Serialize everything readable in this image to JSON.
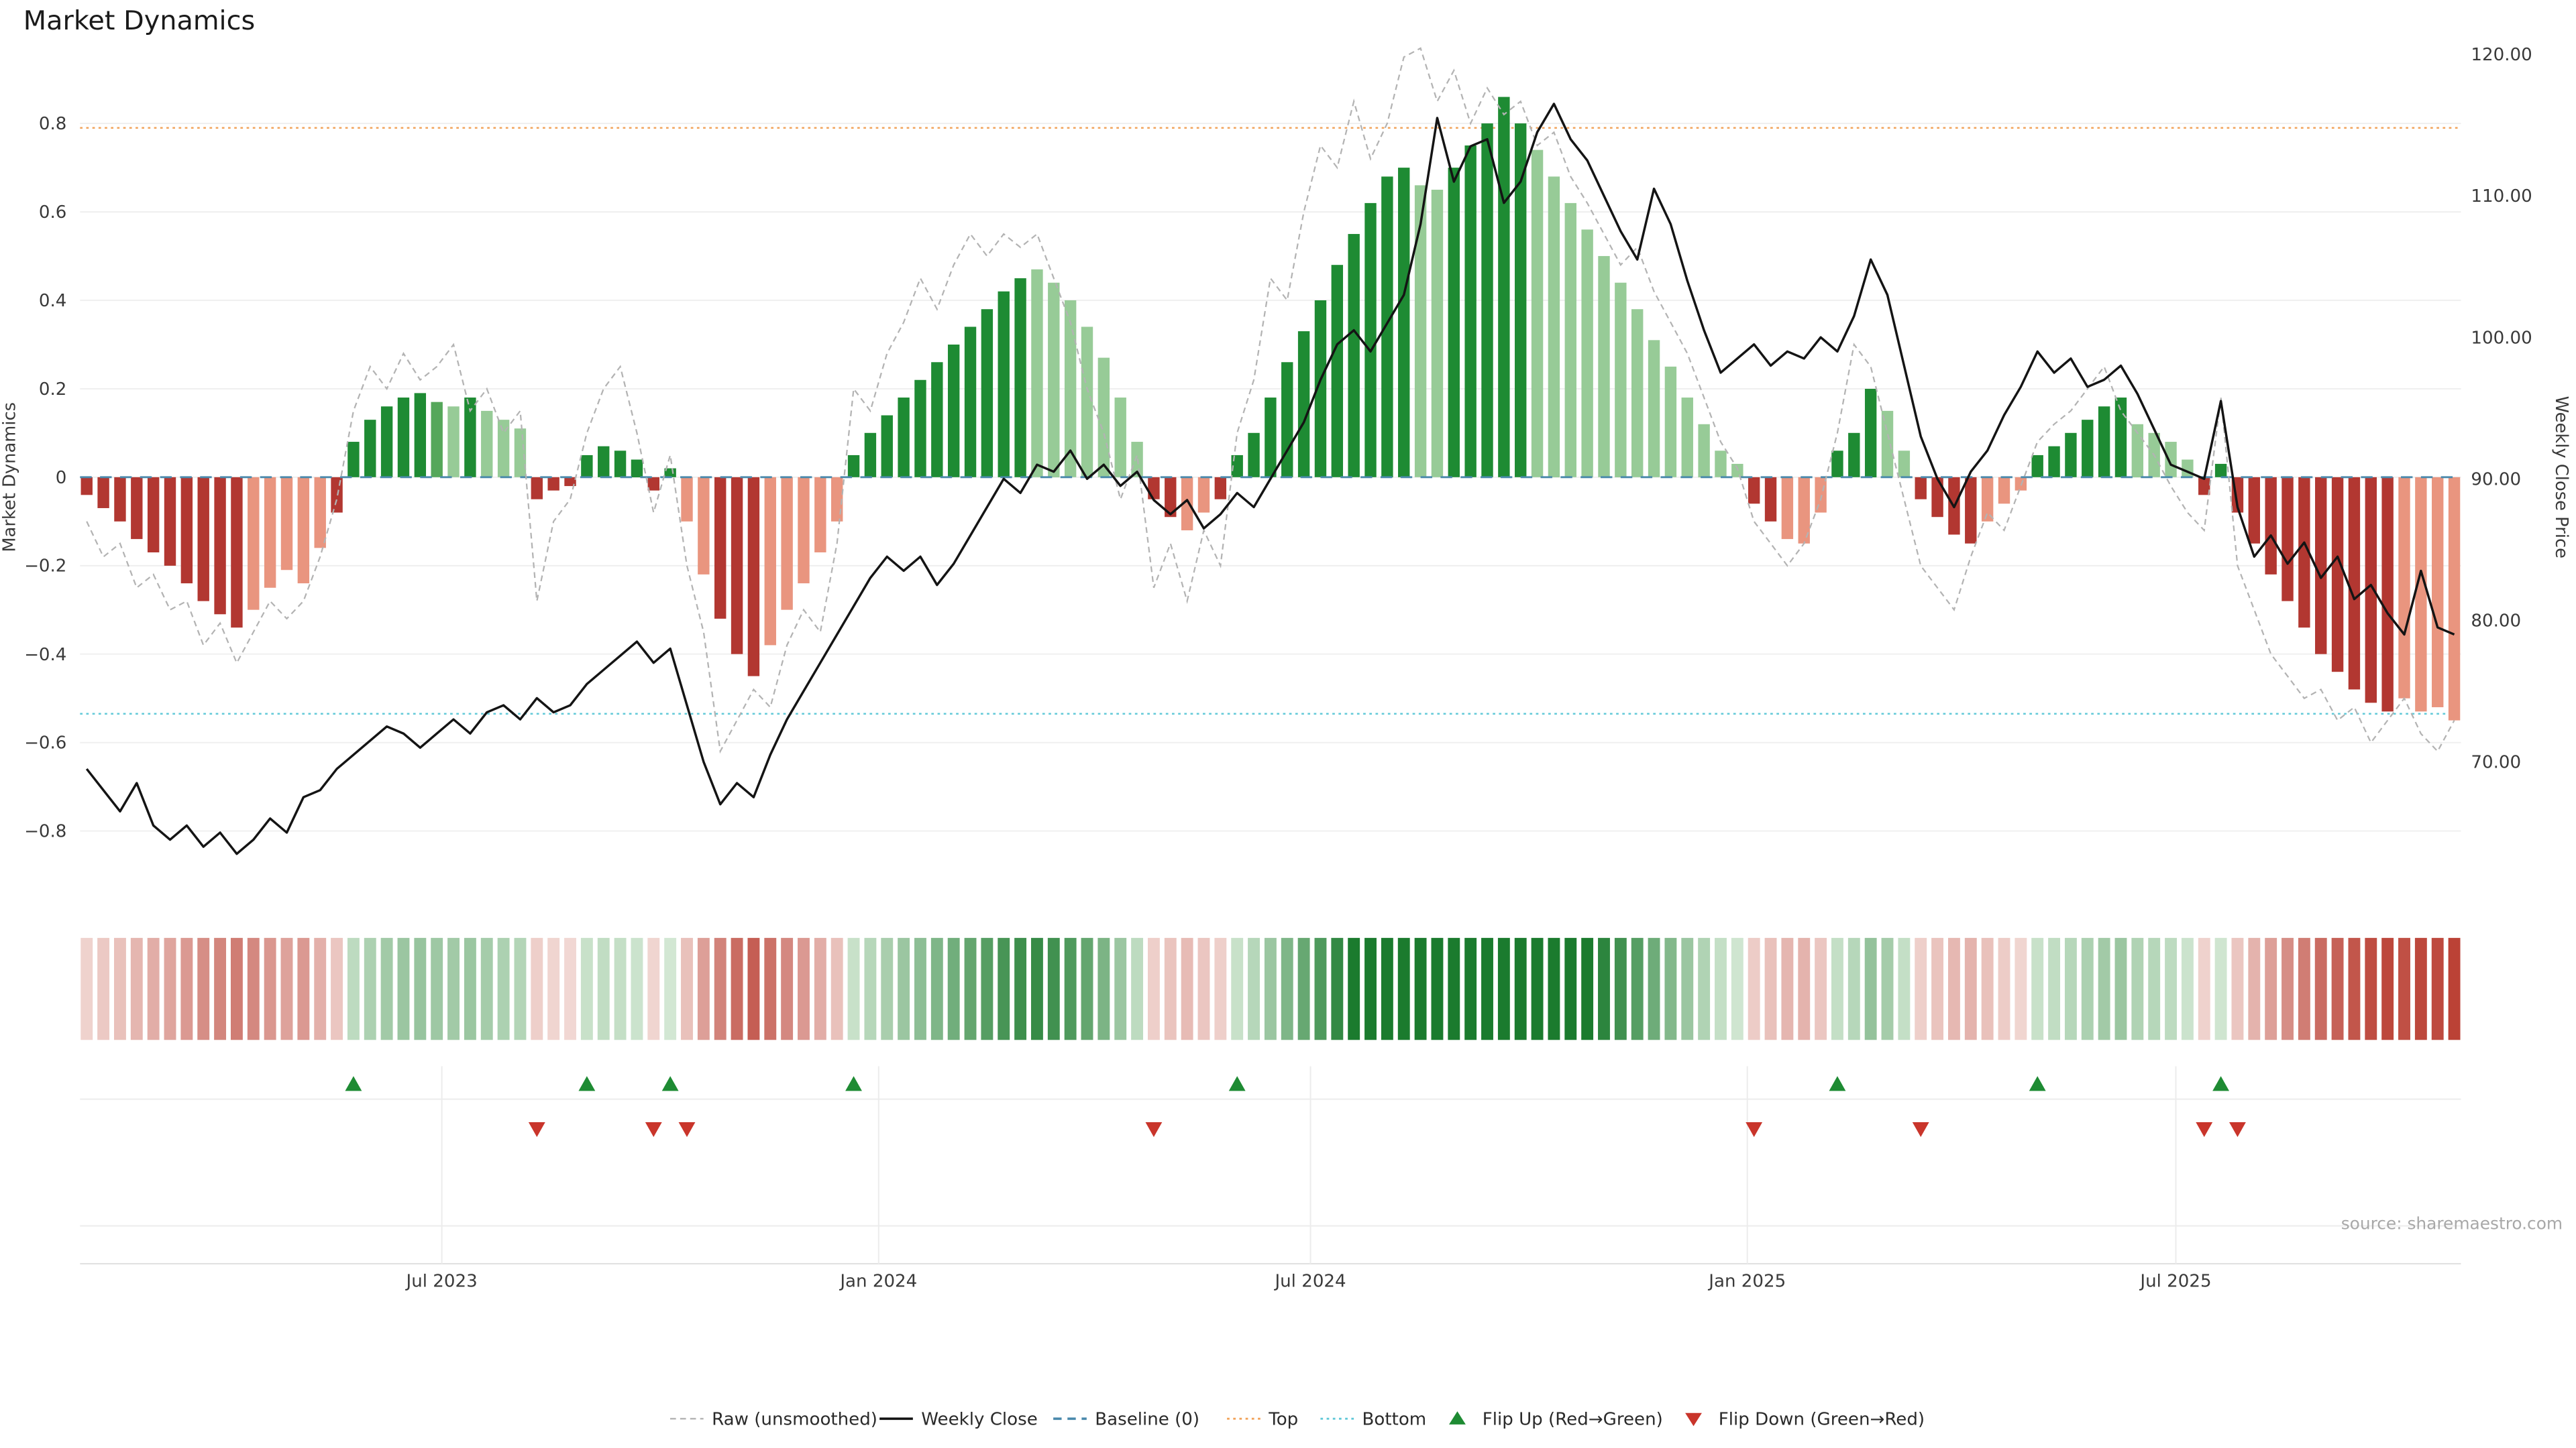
{
  "page": {
    "title": "Market Dynamics",
    "source": "source: sharemaestro.com"
  },
  "legend": {
    "items": [
      {
        "label": "Raw (unsmoothed)",
        "icon": "dashed-gray-line"
      },
      {
        "label": "Weekly Close",
        "icon": "solid-black-line"
      },
      {
        "label": "Baseline (0)",
        "icon": "dashed-blue-line"
      },
      {
        "label": "Top",
        "icon": "dotted-orange-line"
      },
      {
        "label": "Bottom",
        "icon": "dotted-cyan-line"
      },
      {
        "label": "Flip Up (Red→Green)",
        "icon": "up-triangle"
      },
      {
        "label": "Flip Down (Green→Red)",
        "icon": "down-triangle"
      }
    ]
  },
  "chart_data": {
    "type": "combo",
    "title": "Market Dynamics",
    "left_axis": {
      "label": "Market Dynamics",
      "range": [
        -0.95,
        0.97
      ],
      "ticks": [
        {
          "v": 0.8,
          "t": "0.8"
        },
        {
          "v": 0.6,
          "t": "0.6"
        },
        {
          "v": 0.4,
          "t": "0.4"
        },
        {
          "v": 0.2,
          "t": "0.2"
        },
        {
          "v": 0,
          "t": "0"
        },
        {
          "v": -0.2,
          "t": "−0.2"
        },
        {
          "v": -0.4,
          "t": "−0.4"
        },
        {
          "v": -0.6,
          "t": "−0.6"
        },
        {
          "v": -0.8,
          "t": "−0.8"
        }
      ]
    },
    "right_axis": {
      "label": "Weekly Close Price",
      "ticks": [
        {
          "v": 120,
          "t": "120.00"
        },
        {
          "v": 110,
          "t": "110.00"
        },
        {
          "v": 100,
          "t": "100.00"
        },
        {
          "v": 90,
          "t": "90.00"
        },
        {
          "v": 80,
          "t": "80.00"
        },
        {
          "v": 70,
          "t": "70.00"
        }
      ]
    },
    "x_axis": {
      "ticks": [
        {
          "i": 21.3,
          "t": "Jul 2023"
        },
        {
          "i": 47.5,
          "t": "Jan 2024"
        },
        {
          "i": 73.4,
          "t": "Jul 2024"
        },
        {
          "i": 99.6,
          "t": "Jan 2025"
        },
        {
          "i": 125.3,
          "t": "Jul 2025"
        }
      ]
    },
    "baseline": 0,
    "top": 0.79,
    "bottom": -0.535,
    "palette": {
      "dr": "#b23731",
      "lr": "#e9957f",
      "dg": "#1e8b33",
      "mg": "#55a75a",
      "lg": "#97cb97",
      "raw": "#b3b3b3",
      "price": "#141414",
      "baseline": "#4a89ac",
      "top": "#f2a45c",
      "bottom": "#62c9d8",
      "grid": "#efefef",
      "flip_up": "#1e8b33",
      "flip_down": "#c9352b"
    },
    "bars": {
      "name": "Market Dynamics (smoothed)",
      "values": [
        -0.04,
        -0.07,
        -0.1,
        -0.14,
        -0.17,
        -0.2,
        -0.24,
        -0.28,
        -0.31,
        -0.34,
        -0.3,
        -0.25,
        -0.21,
        -0.24,
        -0.16,
        -0.08,
        0.08,
        0.13,
        0.16,
        0.18,
        0.19,
        0.17,
        0.16,
        0.18,
        0.15,
        0.13,
        0.11,
        -0.05,
        -0.03,
        -0.02,
        0.05,
        0.07,
        0.06,
        0.04,
        -0.03,
        0.02,
        -0.1,
        -0.22,
        -0.32,
        -0.4,
        -0.45,
        -0.38,
        -0.3,
        -0.24,
        -0.17,
        -0.1,
        0.05,
        0.1,
        0.14,
        0.18,
        0.22,
        0.26,
        0.3,
        0.34,
        0.38,
        0.42,
        0.45,
        0.47,
        0.44,
        0.4,
        0.34,
        0.27,
        0.18,
        0.08,
        -0.05,
        -0.09,
        -0.12,
        -0.08,
        -0.05,
        0.05,
        0.1,
        0.18,
        0.26,
        0.33,
        0.4,
        0.48,
        0.55,
        0.62,
        0.68,
        0.7,
        0.66,
        0.65,
        0.7,
        0.75,
        0.8,
        0.86,
        0.8,
        0.74,
        0.68,
        0.62,
        0.56,
        0.5,
        0.44,
        0.38,
        0.31,
        0.25,
        0.18,
        0.12,
        0.06,
        0.03,
        -0.06,
        -0.1,
        -0.14,
        -0.15,
        -0.08,
        0.06,
        0.1,
        0.2,
        0.15,
        0.06,
        -0.05,
        -0.09,
        -0.13,
        -0.15,
        -0.1,
        -0.06,
        -0.03,
        0.05,
        0.07,
        0.1,
        0.13,
        0.16,
        0.18,
        0.12,
        0.1,
        0.08,
        0.04,
        -0.04,
        0.03,
        -0.08,
        -0.15,
        -0.22,
        -0.28,
        -0.34,
        -0.4,
        -0.44,
        -0.48,
        -0.51,
        -0.53,
        -0.5,
        -0.53,
        -0.52,
        -0.55
      ],
      "shades": [
        "dr",
        "dr",
        "dr",
        "dr",
        "dr",
        "dr",
        "dr",
        "dr",
        "dr",
        "dr",
        "lr",
        "lr",
        "lr",
        "lr",
        "lr",
        "dr",
        "dg",
        "dg",
        "dg",
        "dg",
        "dg",
        "mg",
        "lg",
        "dg",
        "lg",
        "lg",
        "lg",
        "dr",
        "dr",
        "dr",
        "dg",
        "dg",
        "dg",
        "dg",
        "dr",
        "dg",
        "lr",
        "lr",
        "dr",
        "dr",
        "dr",
        "lr",
        "lr",
        "lr",
        "lr",
        "lr",
        "dg",
        "dg",
        "dg",
        "dg",
        "dg",
        "dg",
        "dg",
        "dg",
        "dg",
        "dg",
        "dg",
        "lg",
        "lg",
        "lg",
        "lg",
        "lg",
        "lg",
        "lg",
        "dr",
        "dr",
        "lr",
        "lr",
        "dr",
        "dg",
        "dg",
        "dg",
        "dg",
        "dg",
        "dg",
        "dg",
        "dg",
        "dg",
        "dg",
        "dg",
        "lg",
        "lg",
        "dg",
        "dg",
        "dg",
        "dg",
        "dg",
        "lg",
        "lg",
        "lg",
        "lg",
        "lg",
        "lg",
        "lg",
        "lg",
        "lg",
        "lg",
        "lg",
        "lg",
        "lg",
        "dr",
        "dr",
        "lr",
        "lr",
        "lr",
        "dg",
        "dg",
        "dg",
        "lg",
        "lg",
        "dr",
        "dr",
        "dr",
        "dr",
        "lr",
        "lr",
        "lr",
        "dg",
        "dg",
        "dg",
        "dg",
        "dg",
        "dg",
        "lg",
        "lg",
        "lg",
        "lg",
        "dr",
        "dg",
        "dr",
        "dr",
        "dr",
        "dr",
        "dr",
        "dr",
        "dr",
        "dr",
        "dr",
        "dr",
        "lr",
        "lr",
        "lr",
        "lr"
      ]
    },
    "raw": {
      "name": "Raw (unsmoothed)",
      "values": [
        -0.1,
        -0.18,
        -0.15,
        -0.25,
        -0.22,
        -0.3,
        -0.28,
        -0.38,
        -0.33,
        -0.42,
        -0.35,
        -0.28,
        -0.32,
        -0.28,
        -0.18,
        -0.05,
        0.15,
        0.25,
        0.2,
        0.28,
        0.22,
        0.25,
        0.3,
        0.15,
        0.2,
        0.1,
        0.15,
        -0.28,
        -0.1,
        -0.05,
        0.1,
        0.2,
        0.25,
        0.1,
        -0.08,
        0.05,
        -0.2,
        -0.35,
        -0.62,
        -0.55,
        -0.48,
        -0.52,
        -0.38,
        -0.3,
        -0.35,
        -0.15,
        0.2,
        0.15,
        0.28,
        0.35,
        0.45,
        0.38,
        0.48,
        0.55,
        0.5,
        0.55,
        0.52,
        0.55,
        0.45,
        0.35,
        0.2,
        0.1,
        -0.05,
        0.05,
        -0.25,
        -0.15,
        -0.28,
        -0.12,
        -0.2,
        0.1,
        0.22,
        0.45,
        0.4,
        0.6,
        0.75,
        0.7,
        0.85,
        0.72,
        0.8,
        0.95,
        0.97,
        0.85,
        0.92,
        0.8,
        0.88,
        0.82,
        0.85,
        0.75,
        0.78,
        0.68,
        0.62,
        0.55,
        0.48,
        0.52,
        0.42,
        0.35,
        0.28,
        0.18,
        0.08,
        0.02,
        -0.1,
        -0.15,
        -0.2,
        -0.15,
        -0.05,
        0.1,
        0.3,
        0.25,
        0.1,
        -0.05,
        -0.2,
        -0.25,
        -0.3,
        -0.18,
        -0.08,
        -0.12,
        -0.02,
        0.08,
        0.12,
        0.15,
        0.2,
        0.25,
        0.15,
        0.1,
        0.05,
        -0.02,
        -0.08,
        -0.12,
        0.18,
        -0.2,
        -0.3,
        -0.4,
        -0.45,
        -0.5,
        -0.48,
        -0.55,
        -0.52,
        -0.6,
        -0.55,
        -0.5,
        -0.58,
        -0.62,
        -0.55
      ]
    },
    "price": {
      "name": "Weekly Close",
      "axis": "right",
      "values": [
        69.5,
        68,
        66.5,
        68.5,
        65.5,
        64.5,
        65.5,
        64,
        65,
        63.5,
        64.5,
        66,
        65,
        67.5,
        68,
        69.5,
        70.5,
        71.5,
        72.5,
        72,
        71,
        72,
        73,
        72,
        73.5,
        74,
        73,
        74.5,
        73.5,
        74,
        75.5,
        76.5,
        77.5,
        78.5,
        77,
        78,
        74,
        70,
        67,
        68.5,
        67.5,
        70.5,
        73,
        75,
        77,
        79,
        81,
        83,
        84.5,
        83.5,
        84.5,
        82.5,
        84,
        86,
        88,
        90,
        89,
        91,
        90.5,
        92,
        90,
        91,
        89.5,
        90.5,
        88.5,
        87.5,
        88.5,
        86.5,
        87.5,
        89,
        88,
        90,
        92,
        94,
        97,
        99.5,
        100.5,
        99,
        101,
        103,
        108,
        115.5,
        111,
        113.5,
        114,
        109.5,
        111,
        114.5,
        116.5,
        114,
        112.5,
        110,
        107.5,
        105.5,
        110.5,
        108,
        104,
        100.5,
        97.5,
        98.5,
        99.5,
        98,
        99,
        98.5,
        100,
        99,
        101.5,
        105.5,
        103,
        98,
        93,
        90,
        88,
        90.5,
        92,
        94.5,
        96.5,
        99,
        97.5,
        98.5,
        96.5,
        97,
        98,
        96,
        93.5,
        91,
        90.5,
        90,
        95.5,
        88,
        84.5,
        86,
        84,
        85.5,
        83,
        84.5,
        81.5,
        82.5,
        80.5,
        79,
        83.5,
        79.5,
        79
      ]
    },
    "flips": {
      "up": [
        16,
        30,
        35,
        46,
        69,
        105,
        117,
        128
      ],
      "down": [
        27,
        34,
        36,
        64,
        100,
        110,
        127,
        129
      ]
    }
  }
}
